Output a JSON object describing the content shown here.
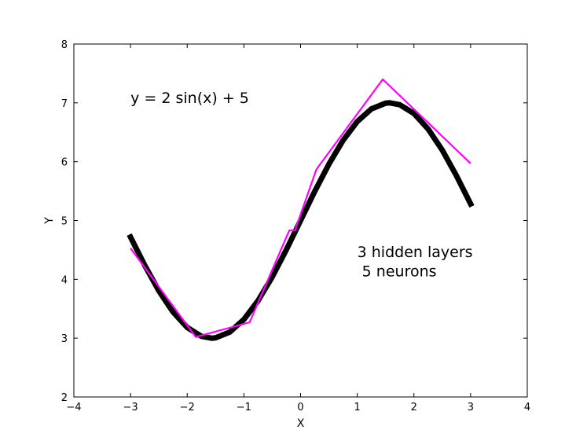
{
  "chart_data": {
    "type": "line",
    "xlabel": "X",
    "ylabel": "Y",
    "xlim": [
      -4,
      4
    ],
    "ylim": [
      2,
      8
    ],
    "xticks": [
      -4,
      -3,
      -2,
      -1,
      0,
      1,
      2,
      3,
      4
    ],
    "xtick_labels": [
      "−4",
      "−3",
      "−2",
      "−1",
      "0",
      "1",
      "2",
      "3",
      "4"
    ],
    "yticks": [
      2,
      3,
      4,
      5,
      6,
      7,
      8
    ],
    "ytick_labels": [
      "2",
      "3",
      "4",
      "5",
      "6",
      "7",
      "8"
    ],
    "grid": false,
    "series": [
      {
        "color": "#000000",
        "x": [
          -3.0,
          -2.75,
          -2.5,
          -2.25,
          -2.0,
          -1.75,
          -1.5708,
          -1.5,
          -1.25,
          -1.0,
          -0.75,
          -0.5,
          -0.25,
          0.0,
          0.25,
          0.5,
          0.75,
          1.0,
          1.25,
          1.5,
          1.5708,
          1.75,
          2.0,
          2.25,
          2.5,
          2.75,
          3.0
        ],
        "y": [
          4.718,
          4.237,
          3.803,
          3.444,
          3.181,
          3.032,
          3.0,
          3.005,
          3.102,
          3.317,
          3.637,
          4.041,
          4.505,
          5.0,
          5.495,
          5.959,
          6.363,
          6.683,
          6.898,
          6.995,
          7.0,
          6.968,
          6.819,
          6.556,
          6.197,
          5.763,
          5.282
        ]
      },
      {
        "color": "#ff00ff",
        "x": [
          -3.0,
          -1.85,
          -0.9,
          -0.2,
          -0.1,
          0.28,
          1.45,
          3.0
        ],
        "y": [
          4.53,
          3.02,
          3.27,
          4.83,
          4.83,
          5.87,
          7.4,
          5.97
        ]
      }
    ],
    "annotations": [
      {
        "text": "y = 2 sin(x) + 5",
        "x": -3.0,
        "y": 7.0
      },
      {
        "text": "3 hidden layers",
        "x": 1.0,
        "y": 4.38
      },
      {
        "text": " 5 neurons",
        "x": 1.0,
        "y": 4.05
      }
    ]
  }
}
